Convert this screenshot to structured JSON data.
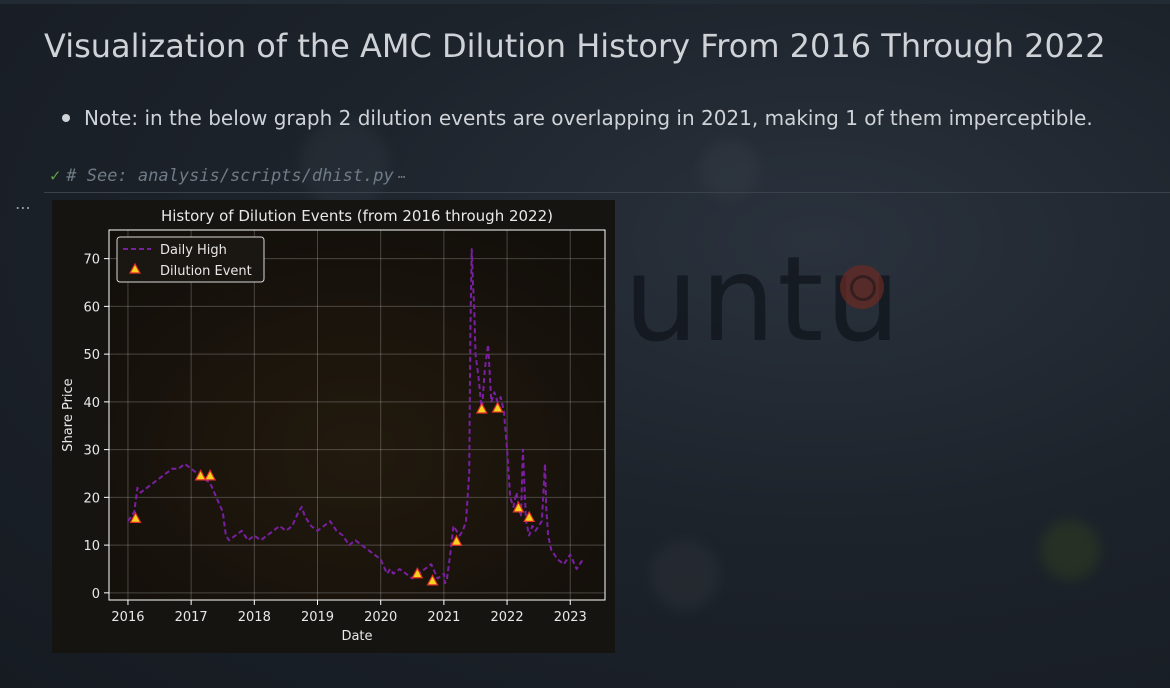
{
  "page": {
    "title": "Visualization of the AMC Dilution History From 2016 Through 2022",
    "note": "Note: in the below graph 2 dilution events are overlapping in 2021, making 1 of them imperceptible.",
    "code_comment": "# See: analysis/scripts/dhist.py",
    "collapsed_indicator": "⋯",
    "output_menu": "⋯",
    "check_icon": "✓",
    "background_watermark": "ubuntu"
  },
  "chart_data": {
    "type": "line",
    "title": "History of Dilution Events (from 2016 through 2022)",
    "xlabel": "Date",
    "ylabel": "Share Price",
    "xlim": [
      2015.7,
      2023.55
    ],
    "ylim": [
      -1.5,
      76
    ],
    "xticks": [
      2016,
      2017,
      2018,
      2019,
      2020,
      2021,
      2022,
      2023
    ],
    "yticks": [
      0,
      10,
      20,
      30,
      40,
      50,
      60,
      70
    ],
    "grid": true,
    "legend_position": "upper left",
    "colors": {
      "line": "#7a1fa2",
      "marker_fill": "#f7d21e",
      "marker_edge": "#e0302a",
      "axes": "#ffffff"
    },
    "series": [
      {
        "name": "Daily High",
        "style": "dashed",
        "x": [
          2016.0,
          2016.1,
          2016.15,
          2016.2,
          2016.3,
          2016.4,
          2016.5,
          2016.6,
          2016.7,
          2016.8,
          2016.9,
          2017.0,
          2017.1,
          2017.2,
          2017.3,
          2017.4,
          2017.5,
          2017.55,
          2017.6,
          2017.7,
          2017.8,
          2017.9,
          2018.0,
          2018.1,
          2018.2,
          2018.3,
          2018.4,
          2018.5,
          2018.6,
          2018.7,
          2018.75,
          2018.8,
          2018.9,
          2019.0,
          2019.1,
          2019.2,
          2019.3,
          2019.4,
          2019.5,
          2019.6,
          2019.7,
          2019.8,
          2019.9,
          2020.0,
          2020.1,
          2020.15,
          2020.2,
          2020.3,
          2020.4,
          2020.5,
          2020.6,
          2020.7,
          2020.8,
          2020.9,
          2021.0,
          2021.02,
          2021.05,
          2021.1,
          2021.15,
          2021.2,
          2021.25,
          2021.3,
          2021.35,
          2021.4,
          2021.42,
          2021.44,
          2021.46,
          2021.48,
          2021.5,
          2021.55,
          2021.6,
          2021.65,
          2021.7,
          2021.75,
          2021.8,
          2021.85,
          2021.9,
          2021.95,
          2022.0,
          2022.05,
          2022.1,
          2022.15,
          2022.2,
          2022.22,
          2022.25,
          2022.3,
          2022.35,
          2022.4,
          2022.45,
          2022.5,
          2022.55,
          2022.6,
          2022.62,
          2022.65,
          2022.7,
          2022.8,
          2022.9,
          2023.0,
          2023.1,
          2023.2
        ],
        "values": [
          15,
          17,
          22,
          21,
          22,
          23,
          24,
          25,
          26,
          26,
          27,
          26,
          25,
          24,
          23,
          20,
          17,
          12,
          11,
          12,
          13,
          11,
          12,
          11,
          12,
          13,
          14,
          13,
          14,
          17,
          18,
          16,
          14,
          13,
          14,
          15,
          13,
          12,
          10,
          11,
          10,
          9,
          8,
          7,
          4,
          5,
          4,
          5,
          4,
          3,
          4,
          5,
          6,
          3,
          4,
          2,
          3,
          8,
          14,
          13,
          12,
          13,
          15,
          25,
          55,
          72,
          65,
          60,
          50,
          45,
          38,
          47,
          52,
          40,
          42,
          40,
          41,
          38,
          30,
          20,
          18,
          21,
          17,
          16,
          30,
          15,
          12,
          14,
          13,
          14,
          15,
          27,
          18,
          12,
          9,
          7,
          6,
          8,
          5,
          7
        ]
      },
      {
        "name": "Dilution Event",
        "style": "markers",
        "x": [
          2016.12,
          2017.15,
          2017.3,
          2020.58,
          2020.82,
          2021.2,
          2021.6,
          2021.85,
          2022.18,
          2022.35
        ],
        "values": [
          15.6,
          24.5,
          24.5,
          4.0,
          2.5,
          10.8,
          38.5,
          38.7,
          17.8,
          15.8
        ]
      }
    ]
  }
}
